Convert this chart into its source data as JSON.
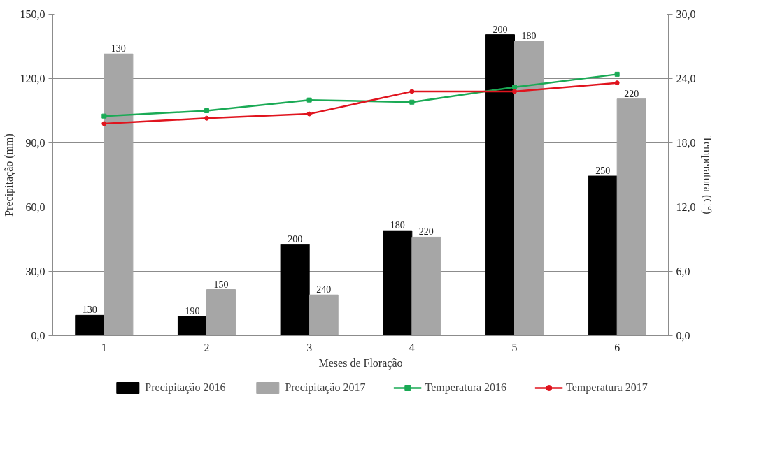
{
  "chart_data": {
    "type": "bar",
    "xlabel": "Meses de Floração",
    "ylabel": "Precipitação (mm)",
    "y2label": "Temperatura (C°)",
    "categories": [
      "1",
      "2",
      "3",
      "4",
      "5",
      "6"
    ],
    "series": [
      {
        "name": "Precipitação 2016",
        "color": "#000000",
        "values": [
          9.5,
          9,
          42.5,
          49,
          140.5,
          74.5
        ]
      },
      {
        "name": "Precipitação 2017",
        "color": "#a6a6a6",
        "values": [
          131.5,
          21.5,
          19,
          46,
          137.5,
          110.5
        ]
      },
      {
        "name": "Temperatura 2016",
        "type": "line",
        "axis": "y2",
        "color": "#1aaa55",
        "marker": "square",
        "values": [
          20.5,
          21.0,
          22.0,
          21.8,
          23.2,
          24.4
        ]
      },
      {
        "name": "Temperatura 2017",
        "type": "line",
        "axis": "y2",
        "color": "#e0141e",
        "marker": "circle",
        "values": [
          19.8,
          20.3,
          20.7,
          22.8,
          22.8,
          23.6
        ]
      }
    ],
    "annotations": [
      {
        "text": "130",
        "x": "1",
        "y": 9.5
      },
      {
        "text": "190",
        "x": "2",
        "y": 9
      },
      {
        "text": "200",
        "x": "3",
        "y": 42.5
      },
      {
        "text": "180",
        "x": "4",
        "y": 49
      },
      {
        "text": "200",
        "x": "5",
        "y": 140.5
      },
      {
        "text": "250",
        "x": "6",
        "y": 74.5
      },
      {
        "text": "130",
        "x": "1",
        "y": 131.5
      },
      {
        "text": "150",
        "x": "2",
        "y": 21.5
      },
      {
        "text": "240",
        "x": "3",
        "y": 19
      },
      {
        "text": "220",
        "x": "4",
        "y": 46
      },
      {
        "text": "180",
        "x": "5",
        "y": 137.5
      },
      {
        "text": "220",
        "x": "6",
        "y": 110.5
      }
    ],
    "ylim": [
      0,
      150
    ],
    "yticks": [
      {
        "value": 0,
        "label": "0,0"
      },
      {
        "value": 30,
        "label": "30,0"
      },
      {
        "value": 60,
        "label": "60,0"
      },
      {
        "value": 90,
        "label": "90,0"
      },
      {
        "value": 120,
        "label": "120,0"
      },
      {
        "value": 150,
        "label": "150,0"
      }
    ],
    "y2lim": [
      0,
      30
    ],
    "y2ticks": [
      {
        "value": 0,
        "label": "0,0"
      },
      {
        "value": 6,
        "label": "6,0"
      },
      {
        "value": 12,
        "label": "12,0"
      },
      {
        "value": 18,
        "label": "18,0"
      },
      {
        "value": 24,
        "label": "24,0"
      },
      {
        "value": 30,
        "label": "30,0"
      }
    ],
    "grid": "y",
    "legend": "bottom"
  }
}
